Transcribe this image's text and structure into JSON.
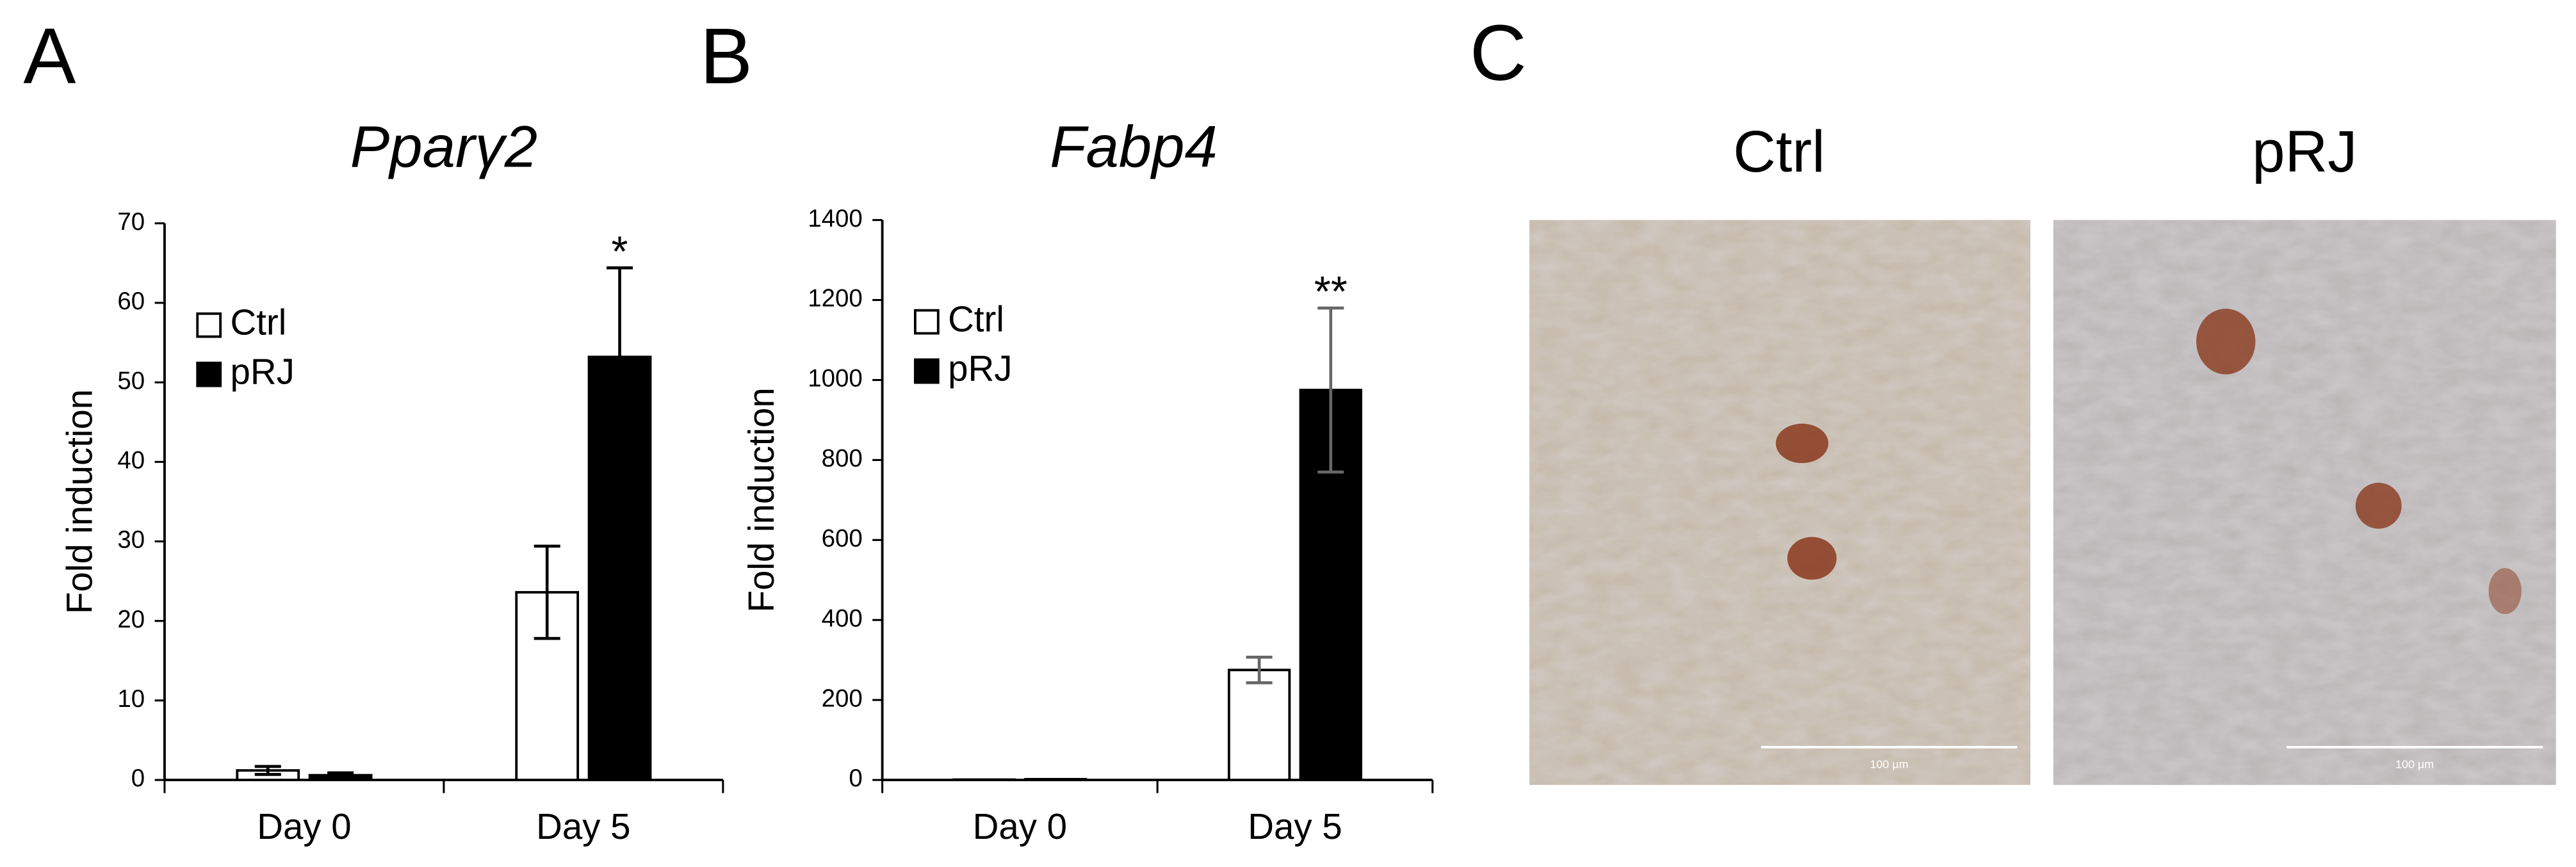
{
  "chart_data": [
    {
      "type": "bar",
      "panel_label": "A",
      "title": "Pparγ2",
      "y_label": "Fold induction",
      "categories": [
        "Day 0",
        "Day 5"
      ],
      "series": [
        {
          "name": "Ctrl",
          "color": "#ffffff",
          "values": [
            1.2,
            23.6
          ],
          "errors": [
            0.5,
            5.8
          ]
        },
        {
          "name": "pRJ",
          "color": "#000000",
          "values": [
            0.6,
            53.2
          ],
          "errors": [
            0.3,
            11.2
          ]
        }
      ],
      "error_color": "#000000",
      "annotations": [
        {
          "text": "*",
          "series": 1,
          "category": 1
        }
      ],
      "ylim": [
        0,
        70
      ],
      "yticks": [
        0,
        10,
        20,
        30,
        40,
        50,
        60,
        70
      ],
      "grid": false,
      "legend": "upper left"
    },
    {
      "type": "bar",
      "panel_label": "B",
      "title": "Fabp4",
      "y_label": "Fold induction",
      "categories": [
        "Day 0",
        "Day 5"
      ],
      "series": [
        {
          "name": "Ctrl",
          "color": "#ffffff",
          "values": [
            1,
            275
          ],
          "errors": [
            0,
            32
          ]
        },
        {
          "name": "pRJ",
          "color": "#000000",
          "values": [
            2,
            975
          ],
          "errors": [
            0,
            205
          ]
        }
      ],
      "error_color": "#666666",
      "annotations": [
        {
          "text": "**",
          "series": 1,
          "category": 1
        }
      ],
      "ylim": [
        0,
        1400
      ],
      "yticks": [
        0,
        200,
        400,
        600,
        800,
        1000,
        1200,
        1400
      ],
      "grid": false,
      "legend": "upper left"
    }
  ],
  "panel_c": {
    "panel_label": "C",
    "images": [
      {
        "title": "Ctrl",
        "scale_bar": "100 µm"
      },
      {
        "title": "pRJ",
        "scale_bar": "100 µm"
      }
    ]
  }
}
